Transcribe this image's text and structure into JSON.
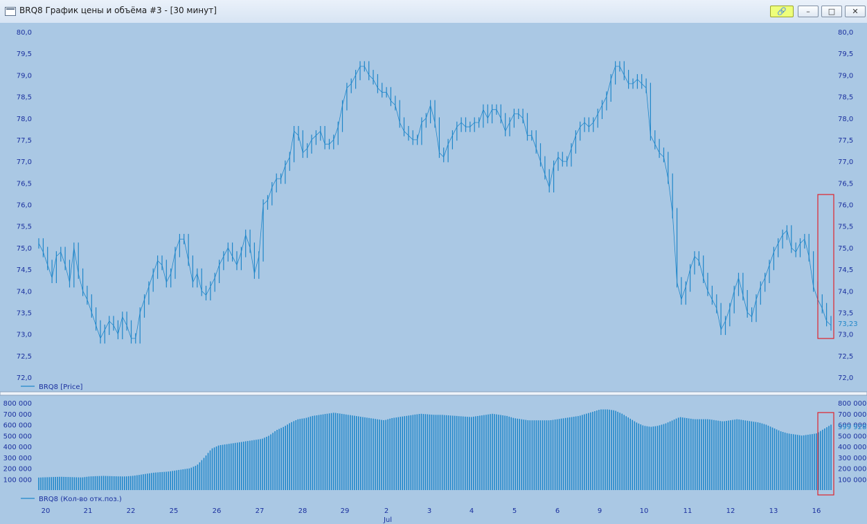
{
  "window": {
    "title": "BRQ8 График цены и объёма #3 - [30 минут]",
    "buttons": {
      "link": "🔗",
      "minimize": "–",
      "maximize": "□",
      "close": "✕"
    }
  },
  "colors": {
    "background": "#aac8e4",
    "series": "#1f86c9",
    "axis_text": "#1a2f9e",
    "highlight": "#e0222b"
  },
  "chart_data": [
    {
      "type": "line",
      "title": "",
      "legend": "BRQ8 [Price]",
      "legend_position": "bottom-left",
      "ylim": [
        72.0,
        80.0
      ],
      "y_ticks": [
        "80,0",
        "79,5",
        "79,0",
        "78,5",
        "78,0",
        "77,5",
        "77,0",
        "76,5",
        "76,0",
        "75,5",
        "75,0",
        "74,5",
        "74,0",
        "73,5",
        "73,0",
        "72,5",
        "72,0"
      ],
      "last_value_label": "73,23",
      "x_ticks": [
        "20",
        "21",
        "22",
        "25",
        "26",
        "27",
        "28",
        "29",
        "2",
        "3",
        "4",
        "5",
        "6",
        "9",
        "10",
        "11",
        "12",
        "13",
        "16"
      ],
      "x_sublabel": "Jul",
      "series": [
        {
          "name": "BRQ8 [Price]",
          "values": [
            75.1,
            74.9,
            74.6,
            74.3,
            74.8,
            74.9,
            74.6,
            74.2,
            75.0,
            74.4,
            74.0,
            73.8,
            73.5,
            73.2,
            72.9,
            73.1,
            73.3,
            73.2,
            73.0,
            73.4,
            73.2,
            72.9,
            72.9,
            73.5,
            73.8,
            74.1,
            74.4,
            74.7,
            74.6,
            74.2,
            74.4,
            74.9,
            75.2,
            75.2,
            74.7,
            74.2,
            74.4,
            74.0,
            73.9,
            74.1,
            74.3,
            74.6,
            74.8,
            75.0,
            74.8,
            74.6,
            74.9,
            75.3,
            75.0,
            74.4,
            74.8,
            76.0,
            76.1,
            76.4,
            76.6,
            76.6,
            76.9,
            77.1,
            77.7,
            77.6,
            77.2,
            77.3,
            77.5,
            77.6,
            77.7,
            77.4,
            77.4,
            77.5,
            77.8,
            78.3,
            78.7,
            78.8,
            79.0,
            79.2,
            79.2,
            79.0,
            78.9,
            78.7,
            78.6,
            78.6,
            78.4,
            78.3,
            77.9,
            77.7,
            77.6,
            77.5,
            77.5,
            77.9,
            78.0,
            78.3,
            77.9,
            77.2,
            77.1,
            77.4,
            77.6,
            77.8,
            77.9,
            77.8,
            77.8,
            77.9,
            77.9,
            78.2,
            78.0,
            78.2,
            78.2,
            78.0,
            77.7,
            77.9,
            78.1,
            78.1,
            78.0,
            77.6,
            77.6,
            77.3,
            77.0,
            76.7,
            76.4,
            76.9,
            77.1,
            77.0,
            77.0,
            77.3,
            77.6,
            77.8,
            77.9,
            77.8,
            77.9,
            78.1,
            78.3,
            78.5,
            78.9,
            79.2,
            79.2,
            79.0,
            78.8,
            78.8,
            78.9,
            78.8,
            78.7,
            77.6,
            77.4,
            77.2,
            77.1,
            76.6,
            75.8,
            74.2,
            73.8,
            74.1,
            74.5,
            74.8,
            74.7,
            74.3,
            74.0,
            73.8,
            73.6,
            73.1,
            73.3,
            73.6,
            74.0,
            74.3,
            73.9,
            73.5,
            73.4,
            73.8,
            74.1,
            74.3,
            74.6,
            74.9,
            75.1,
            75.3,
            75.4,
            75.0,
            74.9,
            75.1,
            75.2,
            74.8,
            74.1,
            73.8,
            73.6,
            73.3,
            73.2
          ]
        }
      ]
    },
    {
      "type": "bar",
      "title": "",
      "legend": "BRQ8 (Кол-во отк.поз.)",
      "legend_position": "bottom-left",
      "ylim": [
        0,
        800000
      ],
      "y_ticks": [
        "800 000",
        "700 000",
        "600 000",
        "500 000",
        "400 000",
        "300 000",
        "200 000",
        "100 000"
      ],
      "last_value_label": "599 928,",
      "series": [
        {
          "name": "BRQ8 (Кол-во отк.поз.)",
          "values": [
            115000,
            118000,
            120000,
            122000,
            120000,
            118000,
            116000,
            125000,
            128000,
            130000,
            128000,
            126000,
            125000,
            130000,
            140000,
            150000,
            160000,
            165000,
            170000,
            180000,
            190000,
            200000,
            230000,
            300000,
            380000,
            410000,
            420000,
            430000,
            440000,
            450000,
            460000,
            470000,
            500000,
            550000,
            580000,
            620000,
            650000,
            660000,
            680000,
            690000,
            700000,
            710000,
            700000,
            690000,
            680000,
            670000,
            660000,
            650000,
            640000,
            660000,
            670000,
            680000,
            690000,
            700000,
            695000,
            690000,
            690000,
            685000,
            680000,
            675000,
            670000,
            680000,
            690000,
            700000,
            690000,
            680000,
            660000,
            650000,
            640000,
            640000,
            640000,
            640000,
            650000,
            660000,
            670000,
            680000,
            700000,
            720000,
            740000,
            740000,
            730000,
            700000,
            660000,
            620000,
            590000,
            580000,
            590000,
            610000,
            640000,
            670000,
            660000,
            650000,
            650000,
            650000,
            640000,
            630000,
            640000,
            650000,
            640000,
            630000,
            620000,
            600000,
            570000,
            540000,
            520000,
            510000,
            500000,
            510000,
            520000,
            560000,
            600000
          ]
        }
      ]
    }
  ]
}
